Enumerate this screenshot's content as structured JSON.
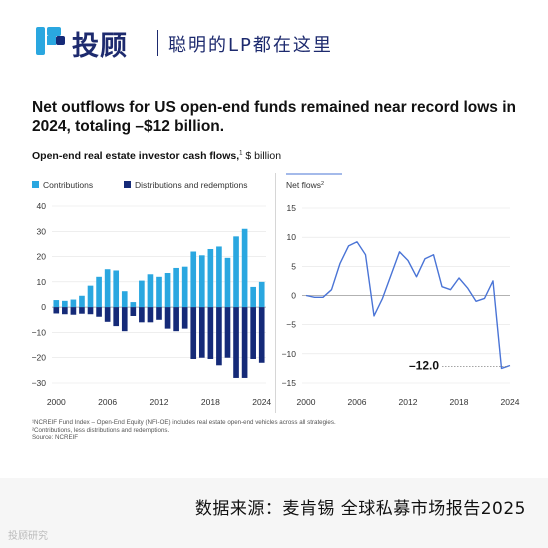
{
  "header": {
    "brand_name": "投顾",
    "tagline": "聪明的LP都在这里"
  },
  "chart_title": "Net outflows for US open-end funds remained near record lows in 2024, totaling –$12 billion.",
  "chart_subtitle_main": "Open-end real estate investor cash flows,",
  "chart_subtitle_sup": "1",
  "chart_subtitle_unit": "$ billion",
  "footnotes": [
    "¹NCREIF Fund Index – Open-End Equity (NFI-OE) includes real estate open-end vehicles across all strategies.",
    "²Contributions, less distributions and redemptions.",
    "Source: NCREIF"
  ],
  "source_banner": "数据来源：麦肯锡 全球私募市场报告2025",
  "watermark": "投顾研究",
  "colors": {
    "contributions": "#2aa7e0",
    "distributions": "#152a78",
    "net_line": "#4a74d6",
    "brand": "#1d2a6e"
  },
  "chart_data": [
    {
      "type": "bar",
      "legend": [
        "Contributions",
        "Distributions and redemptions"
      ],
      "x": [
        2000,
        2001,
        2002,
        2003,
        2004,
        2005,
        2006,
        2007,
        2008,
        2009,
        2010,
        2011,
        2012,
        2013,
        2014,
        2015,
        2016,
        2017,
        2018,
        2019,
        2020,
        2021,
        2022,
        2023,
        2024
      ],
      "xticks": [
        "2000",
        "2006",
        "2012",
        "2018",
        "2024"
      ],
      "yticks": [
        "40",
        "30",
        "20",
        "10",
        "0",
        "−10",
        "−20",
        "−30"
      ],
      "ylim": [
        -30,
        40
      ],
      "series": [
        {
          "name": "Contributions",
          "values": [
            2.8,
            2.5,
            3.0,
            4.5,
            8.5,
            12.0,
            15.0,
            14.5,
            6.3,
            2.0,
            10.5,
            13.0,
            12.0,
            13.5,
            15.5,
            16.0,
            22.0,
            20.5,
            23.0,
            24.0,
            19.5,
            28.0,
            31.0,
            8.0,
            10.0
          ]
        },
        {
          "name": "Distributions and redemptions",
          "values": [
            -2.5,
            -2.8,
            -3.0,
            -2.6,
            -2.8,
            -3.8,
            -5.8,
            -7.5,
            -9.5,
            -3.5,
            -6.0,
            -6.0,
            -5.0,
            -8.5,
            -9.5,
            -8.5,
            -20.5,
            -20.0,
            -20.5,
            -23.0,
            -20.0,
            -28.0,
            -28.0,
            -20.5,
            -22.0
          ]
        }
      ]
    },
    {
      "type": "line",
      "ylabel": "Net flows",
      "ylabel_sup": "2",
      "x": [
        2000,
        2001,
        2002,
        2003,
        2004,
        2005,
        2006,
        2007,
        2008,
        2009,
        2010,
        2011,
        2012,
        2013,
        2014,
        2015,
        2016,
        2017,
        2018,
        2019,
        2020,
        2021,
        2022,
        2023,
        2024
      ],
      "xticks": [
        "2000",
        "2006",
        "2012",
        "2018",
        "2024"
      ],
      "yticks": [
        "15",
        "10",
        "5",
        "0",
        "−5",
        "−10",
        "−15"
      ],
      "ylim": [
        -15,
        15
      ],
      "series": [
        {
          "name": "Net flows",
          "values": [
            0.0,
            -0.3,
            -0.3,
            1.0,
            5.5,
            8.5,
            9.2,
            7.0,
            -3.5,
            -0.5,
            3.5,
            7.5,
            6.0,
            3.2,
            6.3,
            7.0,
            1.5,
            1.0,
            3.0,
            1.3,
            -1.0,
            -0.5,
            2.5,
            -12.5,
            -12.0
          ]
        }
      ],
      "annotation": {
        "x": 2024,
        "label": "–12.0"
      }
    }
  ]
}
